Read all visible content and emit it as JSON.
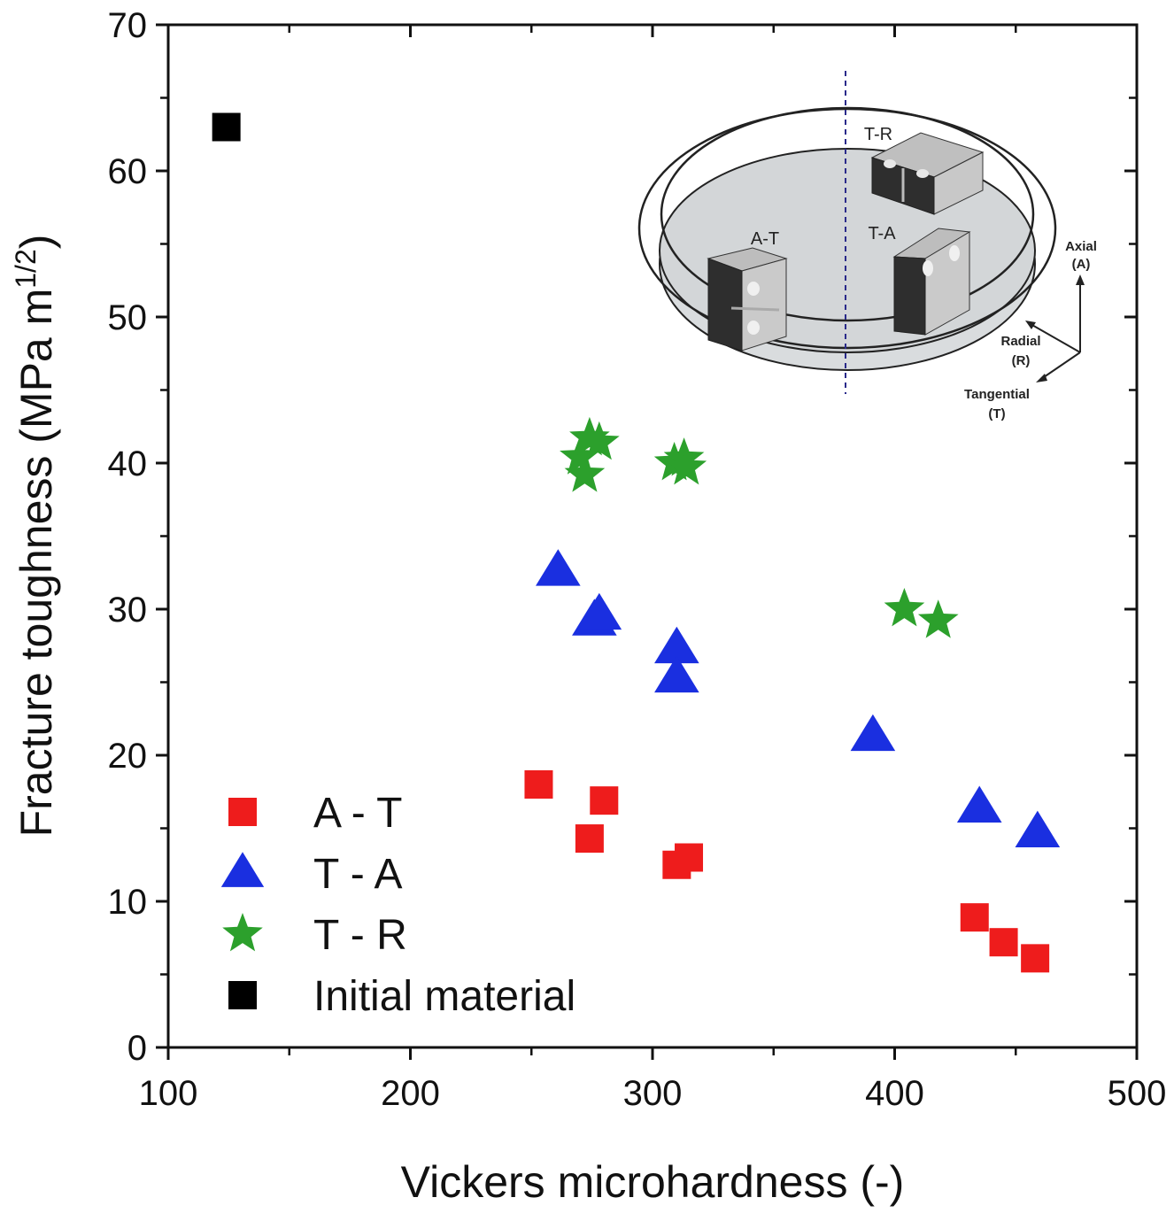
{
  "chart_data": {
    "type": "scatter",
    "title": "",
    "xlabel": "Vickers microhardness (-)",
    "ylabel_main": "Fracture toughness (MPa m",
    "ylabel_sup": "1/2",
    "ylabel_close": ")",
    "xlim": [
      100,
      500
    ],
    "ylim": [
      0,
      70
    ],
    "xticks": [
      100,
      200,
      300,
      400,
      500
    ],
    "yticks": [
      0,
      10,
      20,
      30,
      40,
      50,
      60,
      70
    ],
    "grid": false,
    "legend_position": "bottom-left",
    "series": [
      {
        "name": "A - T",
        "marker": "square",
        "color": "#ee1c1c",
        "points": [
          [
            253,
            18
          ],
          [
            274,
            14.3
          ],
          [
            280,
            16.9
          ],
          [
            310,
            12.5
          ],
          [
            315,
            13
          ],
          [
            433,
            8.9
          ],
          [
            445,
            7.2
          ],
          [
            458,
            6.1
          ]
        ]
      },
      {
        "name": "T - A",
        "marker": "triangle",
        "color": "#1a2fe0",
        "points": [
          [
            261,
            32.6
          ],
          [
            276,
            29.2
          ],
          [
            278,
            29.6
          ],
          [
            310,
            27.3
          ],
          [
            310,
            25.3
          ],
          [
            391,
            21.3
          ],
          [
            435,
            16.4
          ],
          [
            459,
            14.7
          ]
        ]
      },
      {
        "name": "T - R",
        "marker": "star",
        "color": "#2ca02c",
        "points": [
          [
            270,
            40.4
          ],
          [
            272,
            39.2
          ],
          [
            274,
            41.7
          ],
          [
            278,
            41.4
          ],
          [
            309,
            40
          ],
          [
            313,
            40.3
          ],
          [
            314,
            39.7
          ],
          [
            404,
            30
          ],
          [
            418,
            29.2
          ]
        ]
      },
      {
        "name": "Initial material",
        "marker": "square",
        "color": "#000000",
        "points": [
          [
            124,
            63
          ]
        ]
      }
    ]
  },
  "inset": {
    "labels": {
      "tr": "T-R",
      "at": "A-T",
      "ta": "T-A",
      "axial": "Axial",
      "axial_abbr": "(A)",
      "radial": "Radial",
      "radial_abbr": "(R)",
      "tangential": "Tangential",
      "tangential_abbr": "(T)"
    }
  },
  "colors": {
    "axis": "#111111",
    "inset_disc": "#d9dcde",
    "inset_block_dark": "#2a2a2a",
    "inset_block_light": "#c8c8c8"
  }
}
